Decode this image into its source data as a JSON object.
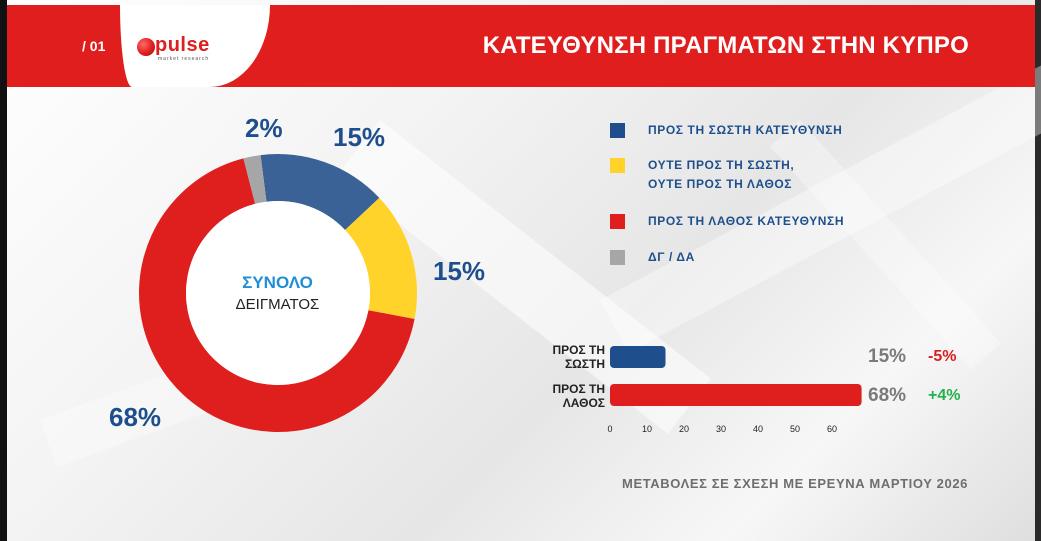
{
  "header": {
    "slide_number": "/ 01",
    "logo_text": "pulse",
    "logo_subtext": "market research",
    "title": "ΚΑΤΕΥΘΥΝΣΗ ΠΡΑΓΜΑΤΩΝ ΣΤΗΝ ΚΥΠΡΟ"
  },
  "chart_data": [
    {
      "type": "pie",
      "style": "donut",
      "center_label_line1": "ΣΥΝΟΛΟ",
      "center_label_line2": "ΔΕΙΓΜΑΤΟΣ",
      "slices": [
        {
          "label": "ΠΡΟΣ ΤΗ ΣΩΣΤΗ ΚΑΤΕΥΘΥΝΣΗ",
          "value": 15,
          "value_label": "15%",
          "color": "#3a6296"
        },
        {
          "label": "ΟΥΤΕ ΠΡΟΣ ΤΗ ΣΩΣΤΗ, ΟΥΤΕ ΠΡΟΣ ΤΗ ΛΑΘΟΣ",
          "value": 15,
          "value_label": "15%",
          "color": "#ffd32a"
        },
        {
          "label": "ΠΡΟΣ ΤΗ ΛΑΘΟΣ ΚΑΤΕΥΘΥΝΣΗ",
          "value": 68,
          "value_label": "68%",
          "color": "#df1e1e"
        },
        {
          "label": "ΔΓ / ΔΑ",
          "value": 2,
          "value_label": "2%",
          "color": "#a6a6a6"
        }
      ],
      "legend": [
        {
          "text": "ΠΡΟΣ ΤΗ ΣΩΣΤΗ ΚΑΤΕΥΘΥΝΣΗ",
          "color": "#1e4f8c"
        },
        {
          "text": "ΟΥΤΕ ΠΡΟΣ ΤΗ ΣΩΣΤΗ,",
          "text2": "ΟΥΤΕ ΠΡΟΣ ΤΗ ΛΑΘΟΣ",
          "color": "#ffd32a"
        },
        {
          "text": "ΠΡΟΣ ΤΗ ΛΑΘΟΣ ΚΑΤΕΥΘΥΝΣΗ",
          "color": "#df1e1e"
        },
        {
          "text": "ΔΓ / ΔΑ",
          "color": "#a6a6a6"
        }
      ],
      "legend_placement": "right"
    },
    {
      "type": "bar",
      "orientation": "horizontal",
      "categories": [
        {
          "line1": "ΠΡΟΣ ΤΗ",
          "line2": "ΣΩΣΤΗ"
        },
        {
          "line1": "ΠΡΟΣ ΤΗ",
          "line2": "ΛΑΘΟΣ"
        }
      ],
      "values": [
        15,
        68
      ],
      "value_labels": [
        "15%",
        "68%"
      ],
      "changes": [
        "-5%",
        "+4%"
      ],
      "change_colors": [
        "#d81f1f",
        "#22b14c"
      ],
      "bar_colors": [
        "#1e4f8c",
        "#df1e1e"
      ],
      "xlim": [
        0,
        65
      ],
      "xticks": [
        "0",
        "10",
        "20",
        "30",
        "40",
        "50",
        "60"
      ],
      "grid": false
    }
  ],
  "footnote": "ΜΕΤΑΒΟΛΕΣ ΣΕ ΣΧΕΣΗ ΜΕ ΕΡΕΥΝΑ ΜΑΡΤΙΟΥ 2026"
}
